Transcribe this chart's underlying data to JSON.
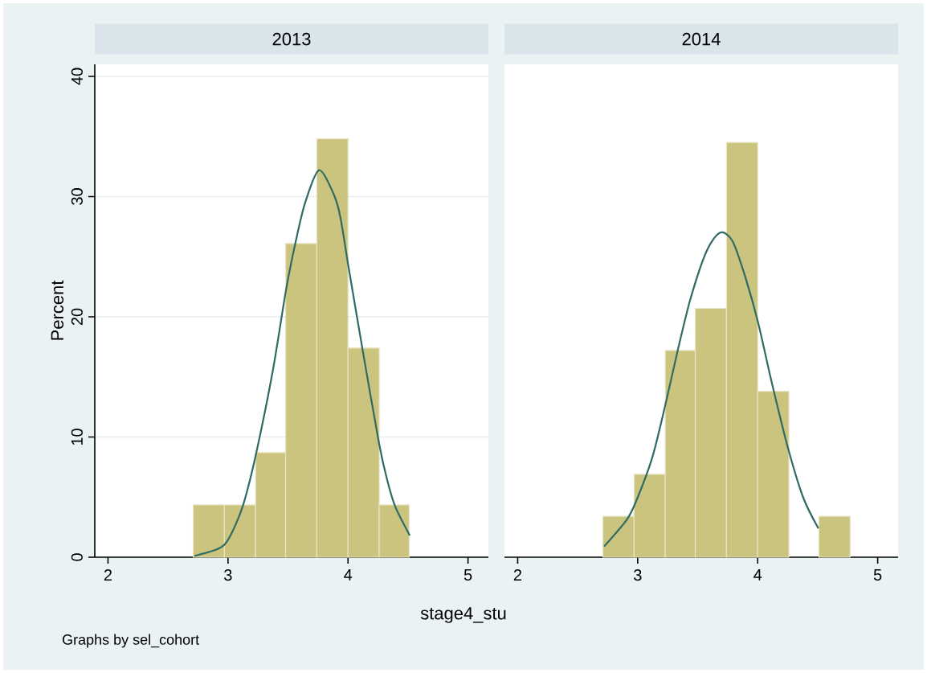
{
  "chart_data": [
    {
      "type": "histogram",
      "title": "2013",
      "ylabel": "Percent",
      "xlabel": "stage4_stu",
      "annotations": [
        "Graphs by sel_cohort"
      ],
      "bins": [
        2.71,
        2.97,
        3.23,
        3.48,
        3.74,
        4.0,
        4.26,
        4.51
      ],
      "values": [
        4.35,
        4.35,
        8.7,
        26.1,
        34.8,
        17.4,
        4.35
      ],
      "color": "#cbc47e",
      "series": [
        {
          "type": "line",
          "color": "#2e6b64",
          "x": [
            2.72,
            2.893,
            2.976,
            3.054,
            3.134,
            3.236,
            3.375,
            3.483,
            3.563,
            3.643,
            3.759,
            3.885,
            3.938,
            4.005,
            4.126,
            4.26,
            4.327,
            4.394,
            4.515
          ],
          "values": [
            0.1,
            0.6,
            1.1,
            2.5,
            4.6,
            8.7,
            15.6,
            22.2,
            26.2,
            29.5,
            32.2,
            30.1,
            28.2,
            24.1,
            17.0,
            9.4,
            6.4,
            4.2,
            1.8
          ]
        }
      ],
      "xlim": [
        1.89,
        5.17
      ],
      "ylim": [
        0,
        41
      ],
      "xticks": [
        2,
        3,
        4,
        5
      ],
      "yticks": [
        0,
        10,
        20,
        30,
        40
      ],
      "grid": "y"
    },
    {
      "type": "histogram",
      "title": "2014",
      "bins": [
        2.71,
        2.97,
        3.23,
        3.48,
        3.74,
        4.0,
        4.26,
        4.51,
        4.77
      ],
      "values": [
        3.4,
        6.9,
        17.2,
        20.7,
        34.5,
        13.8,
        0,
        3.4
      ],
      "color": "#cbc47e",
      "series": [
        {
          "type": "line",
          "color": "#2e6b64",
          "x": [
            2.721,
            2.908,
            2.989,
            3.122,
            3.229,
            3.336,
            3.443,
            3.576,
            3.688,
            3.79,
            3.897,
            4.004,
            4.111,
            4.244,
            4.378,
            4.506
          ],
          "values": [
            0.9,
            3.1,
            4.7,
            8.3,
            12.6,
            17.3,
            21.6,
            25.5,
            27.0,
            26.3,
            23.3,
            19.5,
            14.8,
            9.4,
            5.0,
            2.4
          ]
        }
      ],
      "xlim": [
        1.89,
        5.17
      ],
      "ylim": [
        0,
        41
      ],
      "xticks": [
        2,
        3,
        4,
        5
      ],
      "yticks": [
        0,
        10,
        20,
        30,
        40
      ],
      "grid": "y",
      "tick_labels": "x"
    }
  ]
}
